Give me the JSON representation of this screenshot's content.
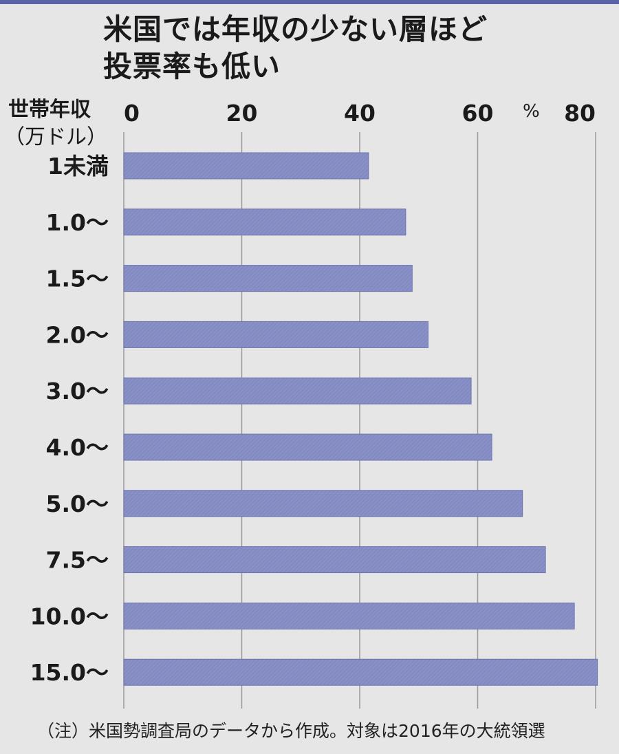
{
  "title_line1": "米国では年収の少ない層ほど",
  "title_line2": "投票率も低い",
  "y_axis_label": "世帯年収",
  "y_axis_unit": "（万ドル）",
  "x_unit": "%",
  "note": "（注）米国勢調査局のデータから作成。対象は2016年の大統領選",
  "colors": {
    "bar": "#8890c6",
    "bar_edge": "#6c74ae",
    "grid": "#9a9a9a",
    "background": "#e6e6e6",
    "accent": "#5b63a8"
  },
  "chart_data": {
    "type": "bar",
    "orientation": "horizontal",
    "categories": [
      "1未満",
      "1.0〜",
      "1.5〜",
      "2.0〜",
      "3.0〜",
      "4.0〜",
      "5.0〜",
      "7.5〜",
      "10.0〜",
      "15.0〜"
    ],
    "values": [
      41.5,
      47.8,
      48.9,
      51.6,
      58.9,
      62.4,
      67.6,
      71.5,
      76.4,
      80.3
    ],
    "xlim": [
      0,
      80
    ],
    "xticks": [
      0,
      20,
      40,
      60,
      80
    ],
    "title": "米国では年収の少ない層ほど 投票率も低い",
    "xlabel": "%",
    "ylabel": "世帯年収（万ドル）",
    "grid": true,
    "x_axis_position": "top"
  }
}
